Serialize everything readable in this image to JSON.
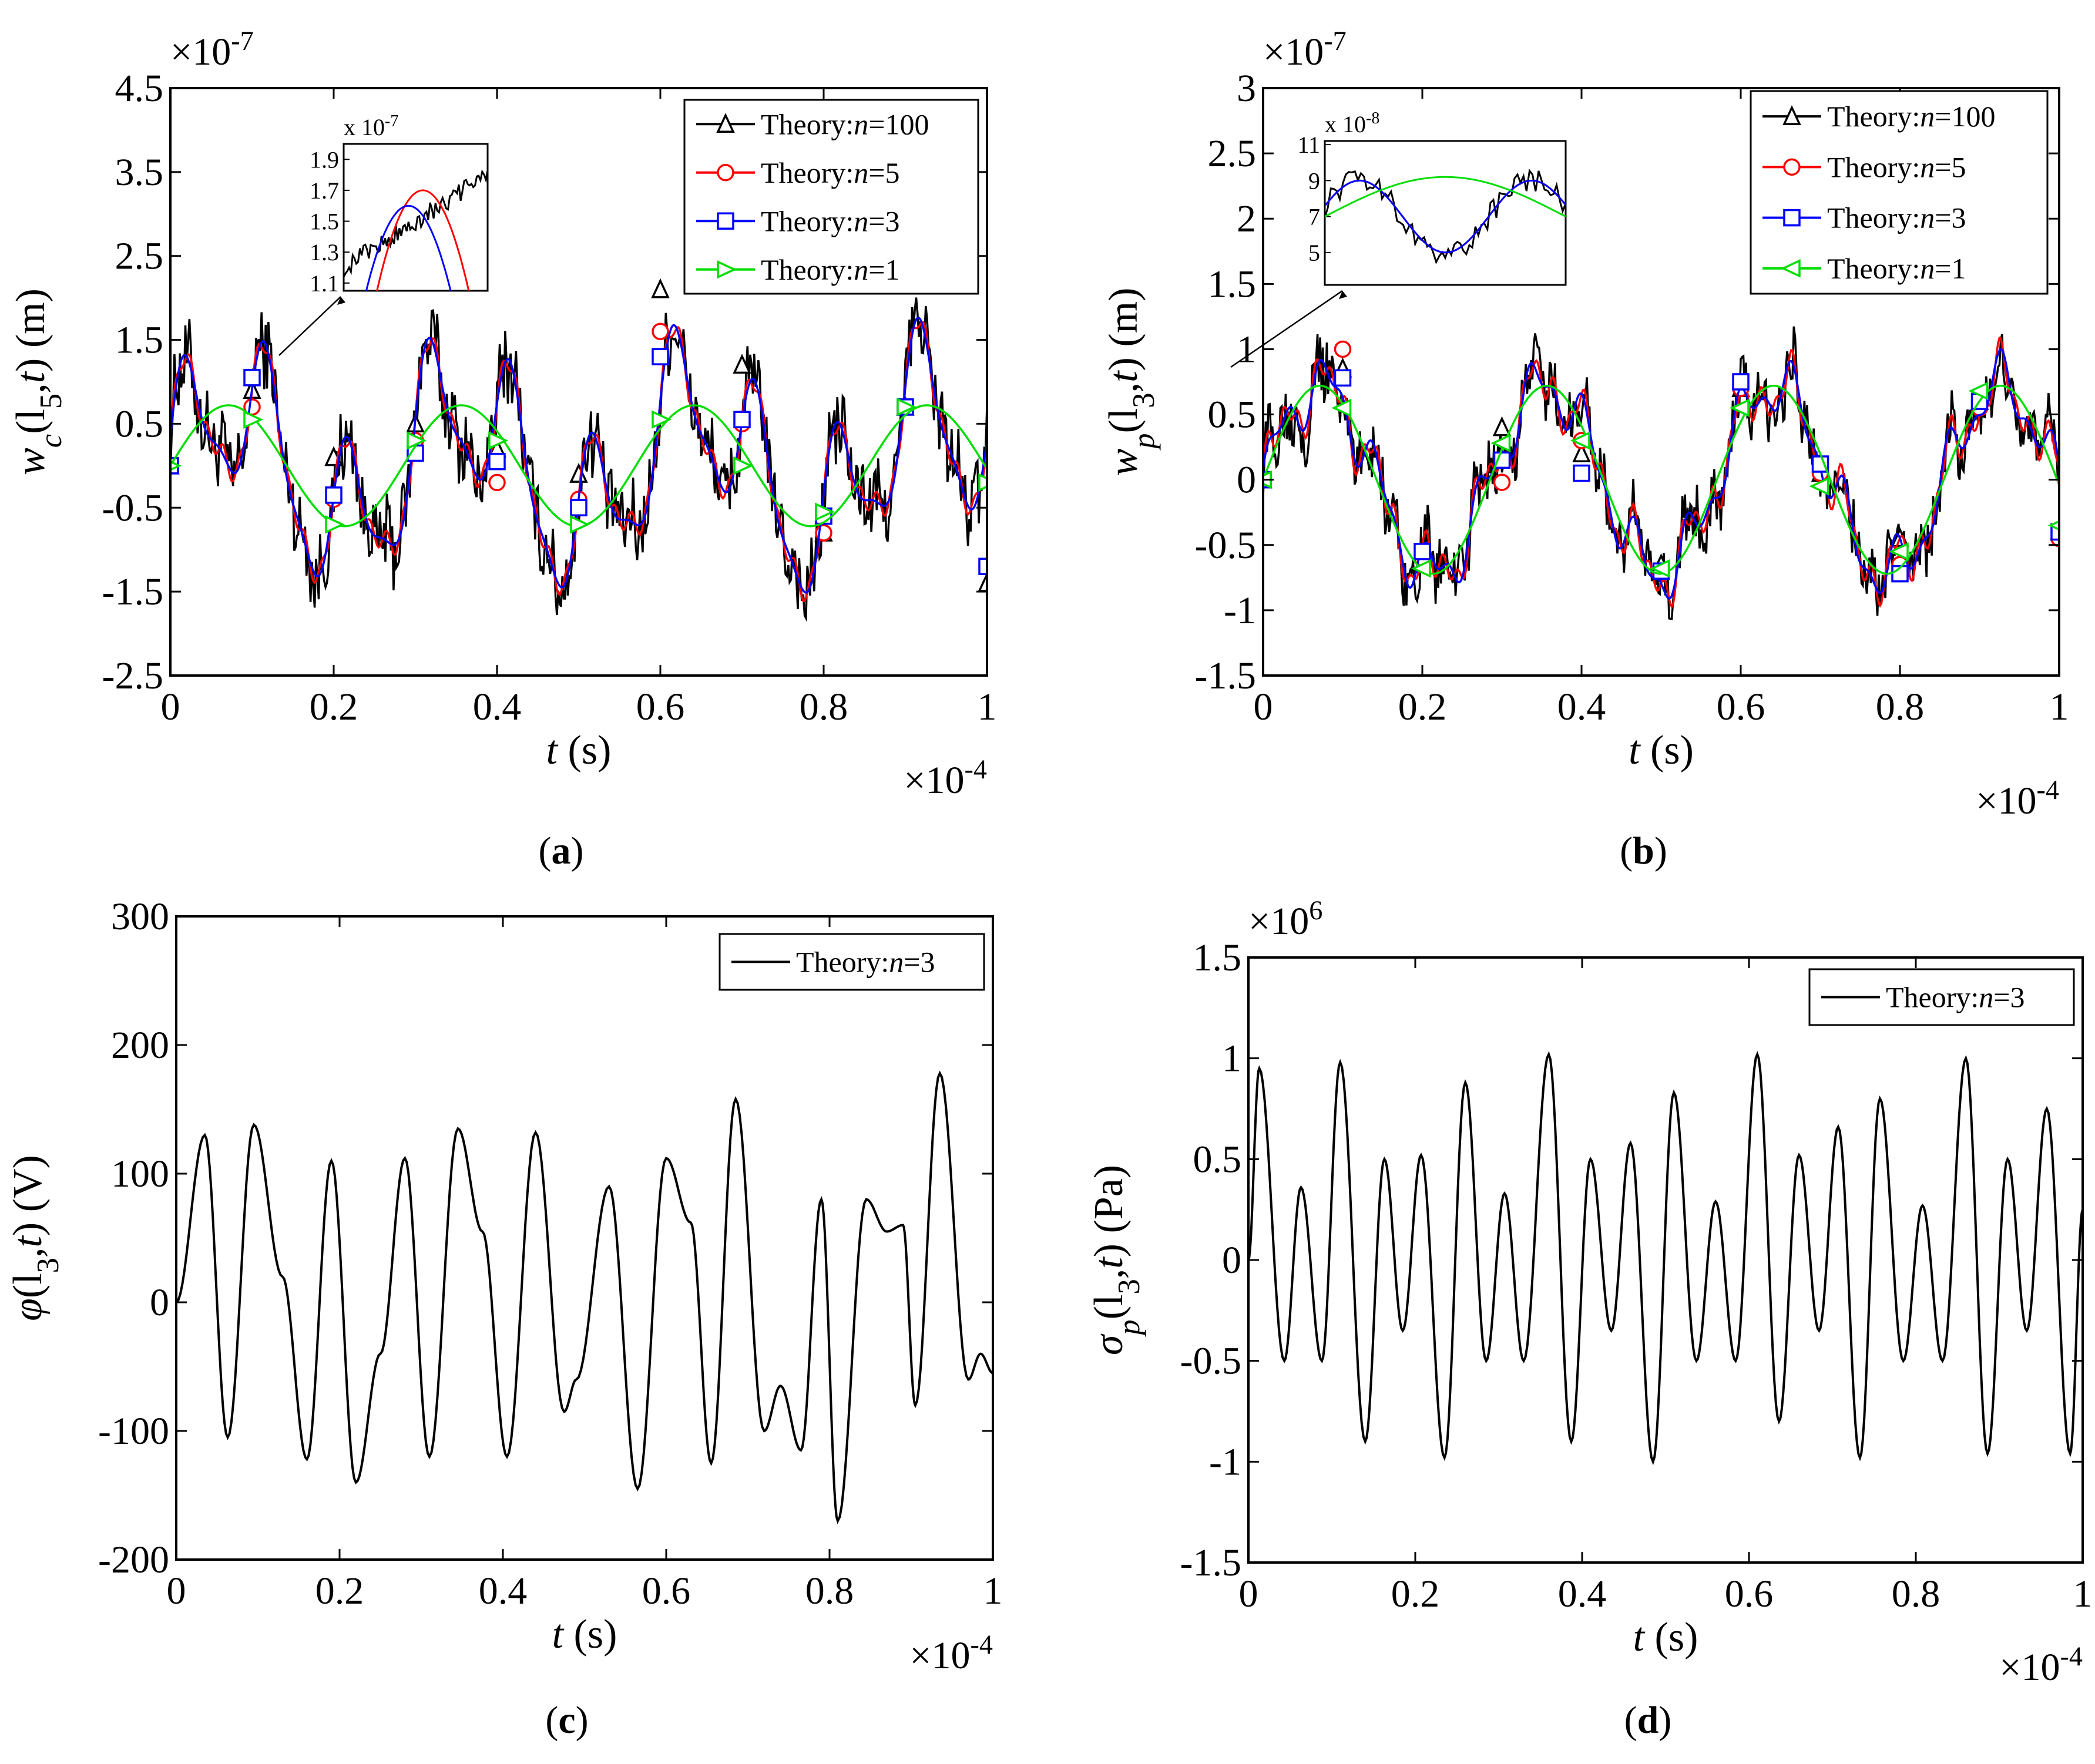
{
  "chart_data": [
    {
      "id": "a",
      "type": "line",
      "caption_letter": "a",
      "xlabel": "t (s)",
      "ylabel": "w_c(l_5,t) (m)",
      "ylabel_main": "w",
      "ylabel_sub": "c",
      "ylabel_rest": "(l",
      "ylabel_sub2": "5",
      "ylabel_tail": ",t) (m)",
      "x_exponent_text": "×10",
      "x_exponent_power": "-4",
      "y_exponent_text": "×10",
      "y_exponent_power": "-7",
      "xlim": [
        0,
        1
      ],
      "ylim": [
        -2.5,
        4.5
      ],
      "xticks": [
        "0",
        "0.2",
        "0.4",
        "0.6",
        "0.8",
        "1"
      ],
      "xtick_values": [
        0,
        0.2,
        0.4,
        0.6,
        0.8,
        1
      ],
      "yticks": [
        "4.5",
        "3.5",
        "2.5",
        "1.5",
        "0.5",
        "-0.5",
        "-1.5",
        "-2.5"
      ],
      "ytick_values": [
        4.5,
        3.5,
        2.5,
        1.5,
        0.5,
        -0.5,
        -1.5,
        -2.5
      ],
      "legend": [
        "Theory:n=100",
        "Theory:n=5",
        "Theory:n=3",
        "Theory:n=1"
      ],
      "legend_prefix": "Theory:",
      "legend_n": [
        "n",
        "n",
        "n",
        "n"
      ],
      "legend_values": [
        "=100",
        "=5",
        "=3",
        "=1"
      ],
      "series": [
        {
          "name": "Theory:n=100",
          "color": "#000000",
          "marker": "triangle-up",
          "x": [
            0,
            0.1,
            0.2,
            0.3,
            0.4,
            0.5,
            0.6,
            0.7,
            0.8,
            0.9,
            1.0
          ],
          "marker_values": [
            0,
            0.9,
            0.1,
            0.5,
            0.2,
            -0.1,
            2.1,
            1.2,
            -0.8,
            0.7,
            -1.4
          ]
        },
        {
          "name": "Theory:n=5",
          "color": "#ff0000",
          "marker": "circle",
          "x": [
            0,
            0.1,
            0.2,
            0.3,
            0.4,
            0.5,
            0.6,
            0.7,
            0.8,
            0.9,
            1.0
          ],
          "marker_values": [
            0,
            0.7,
            -0.4,
            0.3,
            -0.2,
            -0.4,
            1.6,
            0.5,
            -0.8,
            0.7,
            -1.2
          ]
        },
        {
          "name": "Theory:n=3",
          "color": "#0000ff",
          "marker": "square",
          "x": [
            0,
            0.1,
            0.2,
            0.3,
            0.4,
            0.5,
            0.6,
            0.7,
            0.8,
            0.9,
            1.0
          ],
          "marker_values": [
            0,
            1.05,
            -0.35,
            0.15,
            0.05,
            -0.5,
            1.3,
            0.55,
            -0.6,
            0.7,
            -1.2
          ]
        },
        {
          "name": "Theory:n=1",
          "color": "#00dd00",
          "marker": "triangle-right",
          "x": [
            0,
            0.1,
            0.2,
            0.3,
            0.4,
            0.5,
            0.6,
            0.7,
            0.8,
            0.9,
            1.0
          ],
          "marker_values": [
            0,
            0.55,
            -0.7,
            0.3,
            0.3,
            -0.7,
            0.55,
            0.0,
            -0.55,
            0.7,
            -0.2
          ]
        }
      ],
      "inset": {
        "exponent_text": "x 10",
        "exponent_power": "-7",
        "yticks": [
          "1.9",
          "1.7",
          "1.5",
          "1.3",
          "1.1"
        ],
        "ytick_values": [
          1.9,
          1.7,
          1.5,
          1.3,
          1.1
        ],
        "ylim": [
          1.05,
          2.0
        ]
      }
    },
    {
      "id": "b",
      "type": "line",
      "caption_letter": "b",
      "xlabel": "t (s)",
      "ylabel": "w_p(l_3,t) (m)",
      "ylabel_main": "w",
      "ylabel_sub": "p",
      "ylabel_rest": "(l",
      "ylabel_sub2": "3",
      "ylabel_tail": ",t) (m)",
      "x_exponent_text": "×10",
      "x_exponent_power": "-4",
      "y_exponent_text": "×10",
      "y_exponent_power": "-7",
      "xlim": [
        0,
        1
      ],
      "ylim": [
        -1.5,
        3
      ],
      "xticks": [
        "0",
        "0.2",
        "0.4",
        "0.6",
        "0.8",
        "1"
      ],
      "xtick_values": [
        0,
        0.2,
        0.4,
        0.6,
        0.8,
        1
      ],
      "yticks": [
        "3",
        "2.5",
        "2",
        "1.5",
        "1",
        "0.5",
        "0",
        "-0.5",
        "-1",
        "-1.5"
      ],
      "ytick_values": [
        3,
        2.5,
        2,
        1.5,
        1,
        0.5,
        0,
        -0.5,
        -1,
        -1.5
      ],
      "legend": [
        "Theory:n=100",
        "Theory:n=5",
        "Theory:n=3",
        "Theory:n=1"
      ],
      "legend_prefix": "Theory:",
      "legend_n": [
        "n",
        "n",
        "n",
        "n"
      ],
      "legend_values": [
        "=100",
        "=5",
        "=3",
        "=1"
      ],
      "series": [
        {
          "name": "Theory:n=100",
          "color": "#000000",
          "marker": "triangle-up",
          "x": [
            0,
            0.1,
            0.2,
            0.3,
            0.4,
            0.5,
            0.6,
            0.7,
            0.8,
            0.9,
            1.0
          ],
          "marker_values": [
            0,
            0.85,
            -0.65,
            0.4,
            0.2,
            -0.65,
            0.7,
            0.05,
            -0.45,
            0.6,
            -0.4
          ]
        },
        {
          "name": "Theory:n=5",
          "color": "#ff0000",
          "marker": "circle",
          "x": [
            0,
            0.1,
            0.2,
            0.3,
            0.4,
            0.5,
            0.6,
            0.7,
            0.8,
            0.9,
            1.0
          ],
          "marker_values": [
            0,
            1.0,
            -0.6,
            -0.02,
            0.3,
            -0.7,
            0.7,
            0.05,
            -0.65,
            0.55,
            -0.45
          ]
        },
        {
          "name": "Theory:n=3",
          "color": "#0000ff",
          "marker": "square",
          "x": [
            0,
            0.1,
            0.2,
            0.3,
            0.4,
            0.5,
            0.6,
            0.7,
            0.8,
            0.9,
            1.0
          ],
          "marker_values": [
            0,
            0.78,
            -0.55,
            0.15,
            0.05,
            -0.7,
            0.75,
            0.12,
            -0.72,
            0.6,
            -0.4
          ]
        },
        {
          "name": "Theory:n=1",
          "color": "#00dd00",
          "marker": "triangle-left",
          "x": [
            0,
            0.1,
            0.2,
            0.3,
            0.4,
            0.5,
            0.6,
            0.7,
            0.8,
            0.9,
            1.0
          ],
          "marker_values": [
            0,
            0.55,
            -0.68,
            0.28,
            0.3,
            -0.68,
            0.55,
            -0.05,
            -0.55,
            0.68,
            -0.35
          ]
        }
      ],
      "inset": {
        "exponent_text": "x 10",
        "exponent_power": "-8",
        "yticks": [
          "11",
          "9",
          "7",
          "5"
        ],
        "ytick_values": [
          11,
          9,
          7,
          5
        ],
        "ylim": [
          3.2,
          11.2
        ]
      }
    },
    {
      "id": "c",
      "type": "line",
      "caption_letter": "c",
      "xlabel": "t (s)",
      "ylabel": "φ(l_3,t) (V)",
      "ylabel_main": "φ",
      "ylabel_sub": "",
      "ylabel_rest": "(l",
      "ylabel_sub2": "3",
      "ylabel_tail": ",t) (V)",
      "x_exponent_text": "×10",
      "x_exponent_power": "-4",
      "y_exponent_text": "",
      "y_exponent_power": "",
      "xlim": [
        0,
        1
      ],
      "ylim": [
        -200,
        300
      ],
      "xticks": [
        "0",
        "0.2",
        "0.4",
        "0.6",
        "0.8",
        "1"
      ],
      "xtick_values": [
        0,
        0.2,
        0.4,
        0.6,
        0.8,
        1
      ],
      "yticks": [
        "300",
        "200",
        "100",
        "0",
        "-100",
        "-200"
      ],
      "ytick_values": [
        300,
        200,
        100,
        0,
        -100,
        -200
      ],
      "legend": [
        "Theory:n=3"
      ],
      "legend_prefix": "Theory:",
      "legend_n": [
        "n"
      ],
      "legend_values": [
        "=3"
      ],
      "series": [
        {
          "name": "Theory:n=3",
          "color": "#000000",
          "marker": "none",
          "peaks": [
            [
              0,
              0
            ],
            [
              0.035,
              130
            ],
            [
              0.063,
              -105
            ],
            [
              0.095,
              138
            ],
            [
              0.13,
              20
            ],
            [
              0.16,
              -122
            ],
            [
              0.19,
              110
            ],
            [
              0.22,
              -140
            ],
            [
              0.25,
              -40
            ],
            [
              0.28,
              112
            ],
            [
              0.31,
              -120
            ],
            [
              0.345,
              135
            ],
            [
              0.375,
              55
            ],
            [
              0.405,
              -120
            ],
            [
              0.44,
              132
            ],
            [
              0.475,
              -85
            ],
            [
              0.49,
              -60
            ],
            [
              0.53,
              90
            ],
            [
              0.565,
              -145
            ],
            [
              0.6,
              112
            ],
            [
              0.63,
              62
            ],
            [
              0.655,
              -125
            ],
            [
              0.685,
              158
            ],
            [
              0.72,
              -100
            ],
            [
              0.74,
              -65
            ],
            [
              0.765,
              -115
            ],
            [
              0.79,
              80
            ],
            [
              0.81,
              -170
            ],
            [
              0.845,
              80
            ],
            [
              0.87,
              55
            ],
            [
              0.89,
              60
            ],
            [
              0.905,
              -80
            ],
            [
              0.935,
              178
            ],
            [
              0.97,
              -60
            ],
            [
              0.985,
              -40
            ],
            [
              1.0,
              -55
            ]
          ]
        }
      ]
    },
    {
      "id": "d",
      "type": "line",
      "caption_letter": "d",
      "xlabel": "t (s)",
      "ylabel": "σ_p(l_3,t) (Pa)",
      "ylabel_main": "σ",
      "ylabel_sub": "p",
      "ylabel_rest": "(l",
      "ylabel_sub2": "3",
      "ylabel_tail": ",t) (Pa)",
      "x_exponent_text": "×10",
      "x_exponent_power": "-4",
      "y_exponent_text": "×10",
      "y_exponent_power": "6",
      "xlim": [
        0,
        1
      ],
      "ylim": [
        -1.5,
        1.5
      ],
      "xticks": [
        "0",
        "0.2",
        "0.4",
        "0.6",
        "0.8",
        "1"
      ],
      "xtick_values": [
        0,
        0.2,
        0.4,
        0.6,
        0.8,
        1
      ],
      "yticks": [
        "1.5",
        "1",
        "0.5",
        "0",
        "-0.5",
        "-1",
        "-1.5"
      ],
      "ytick_values": [
        1.5,
        1,
        0.5,
        0,
        -0.5,
        -1,
        -1.5
      ],
      "legend": [
        "Theory:n=3"
      ],
      "legend_prefix": "Theory:",
      "legend_n": [
        "n"
      ],
      "legend_values": [
        "=3"
      ],
      "series": [
        {
          "name": "Theory:n=3",
          "color": "#000000",
          "marker": "none",
          "peaks": [
            [
              0,
              0
            ],
            [
              0.013,
              0.95
            ],
            [
              0.043,
              -0.5
            ],
            [
              0.063,
              0.36
            ],
            [
              0.088,
              -0.5
            ],
            [
              0.11,
              0.98
            ],
            [
              0.14,
              -0.9
            ],
            [
              0.163,
              0.5
            ],
            [
              0.185,
              -0.35
            ],
            [
              0.207,
              0.52
            ],
            [
              0.235,
              -0.98
            ],
            [
              0.26,
              0.88
            ],
            [
              0.285,
              -0.5
            ],
            [
              0.307,
              0.33
            ],
            [
              0.33,
              -0.5
            ],
            [
              0.36,
              1.02
            ],
            [
              0.387,
              -0.9
            ],
            [
              0.41,
              0.5
            ],
            [
              0.435,
              -0.35
            ],
            [
              0.458,
              0.58
            ],
            [
              0.485,
              -1.0
            ],
            [
              0.51,
              0.83
            ],
            [
              0.537,
              -0.5
            ],
            [
              0.56,
              0.29
            ],
            [
              0.584,
              -0.5
            ],
            [
              0.61,
              1.02
            ],
            [
              0.636,
              -0.8
            ],
            [
              0.66,
              0.52
            ],
            [
              0.684,
              -0.35
            ],
            [
              0.707,
              0.66
            ],
            [
              0.733,
              -0.98
            ],
            [
              0.757,
              0.8
            ],
            [
              0.785,
              -0.5
            ],
            [
              0.808,
              0.27
            ],
            [
              0.832,
              -0.5
            ],
            [
              0.86,
              1.0
            ],
            [
              0.886,
              -0.96
            ],
            [
              0.91,
              0.5
            ],
            [
              0.933,
              -0.35
            ],
            [
              0.957,
              0.75
            ],
            [
              0.985,
              -0.96
            ],
            [
              1.0,
              0.25
            ]
          ]
        }
      ]
    }
  ]
}
